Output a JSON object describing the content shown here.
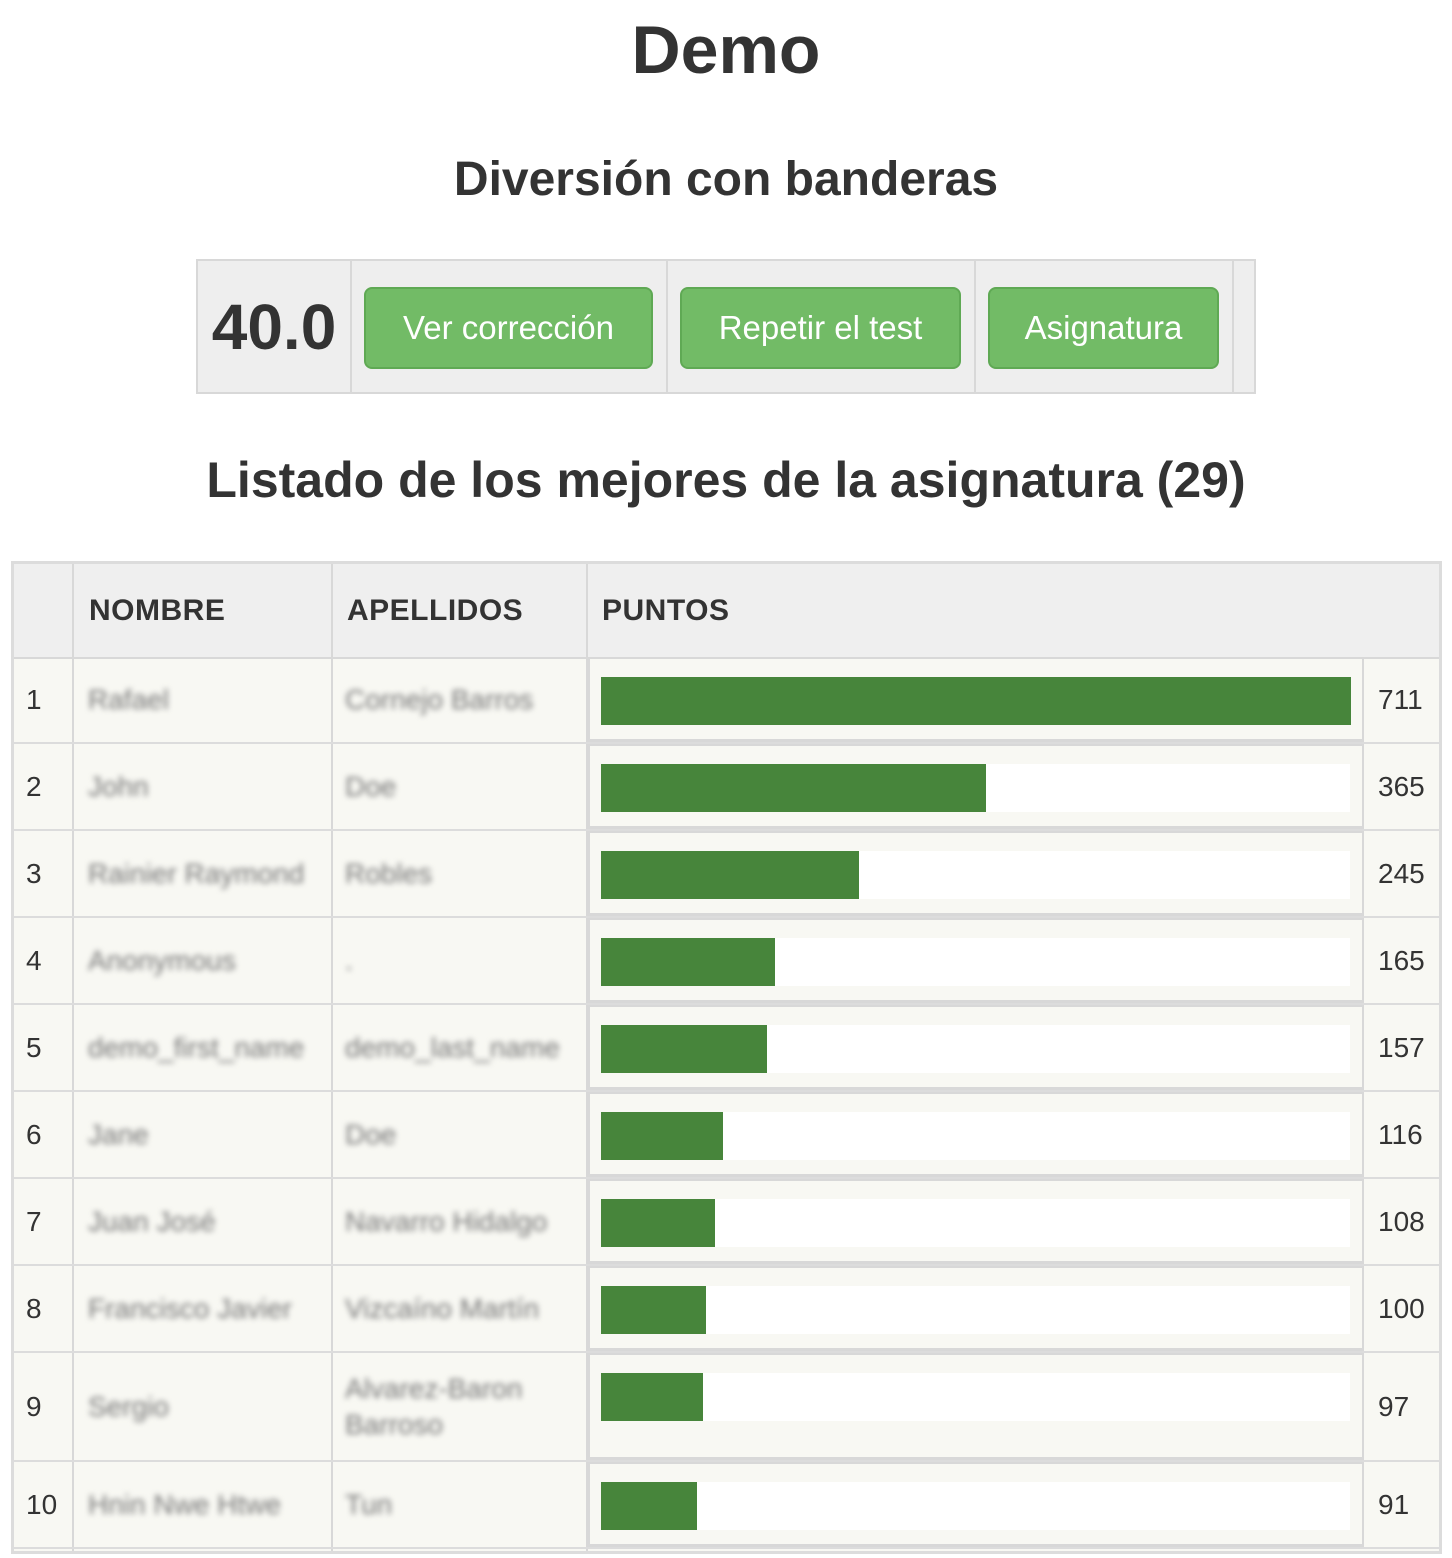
{
  "course_title": "Demo",
  "quiz_title": "Diversión con banderas",
  "result": {
    "score": "40.0",
    "buttons": [
      "Ver corrección",
      "Repetir el test",
      "Asignatura"
    ]
  },
  "ranking": {
    "heading": "Listado de los mejores de la asignatura (29)",
    "columns": [
      "",
      "NOMBRE",
      "APELLIDOS",
      "PUNTOS"
    ],
    "max_points": 711,
    "rows": [
      {
        "rank": "1",
        "first_name": "Rafael",
        "last_name": "Cornejo Barros",
        "points": "711"
      },
      {
        "rank": "2",
        "first_name": "John",
        "last_name": "Doe",
        "points": "365"
      },
      {
        "rank": "3",
        "first_name": "Rainier Raymond",
        "last_name": "Robles",
        "points": "245"
      },
      {
        "rank": "4",
        "first_name": "Anonymous",
        "last_name": ".",
        "points": "165"
      },
      {
        "rank": "5",
        "first_name": "demo_first_name",
        "last_name": "demo_last_name",
        "points": "157"
      },
      {
        "rank": "6",
        "first_name": "Jane",
        "last_name": "Doe",
        "points": "116"
      },
      {
        "rank": "7",
        "first_name": "Juan José",
        "last_name": "Navarro Hidalgo",
        "points": "108"
      },
      {
        "rank": "8",
        "first_name": "Francisco Javier",
        "last_name": "Vizcaíno Martín",
        "points": "100"
      },
      {
        "rank": "9",
        "first_name": "Sergio",
        "last_name": "Alvarez-Baron Barroso",
        "points": "97"
      },
      {
        "rank": "10",
        "first_name": "Hnin Nwe Htwe",
        "last_name": "Tun",
        "points": "91"
      }
    ]
  },
  "colors": {
    "button_green": "#72bb66",
    "bar_green": "#47853b",
    "text_dark": "#333333"
  }
}
